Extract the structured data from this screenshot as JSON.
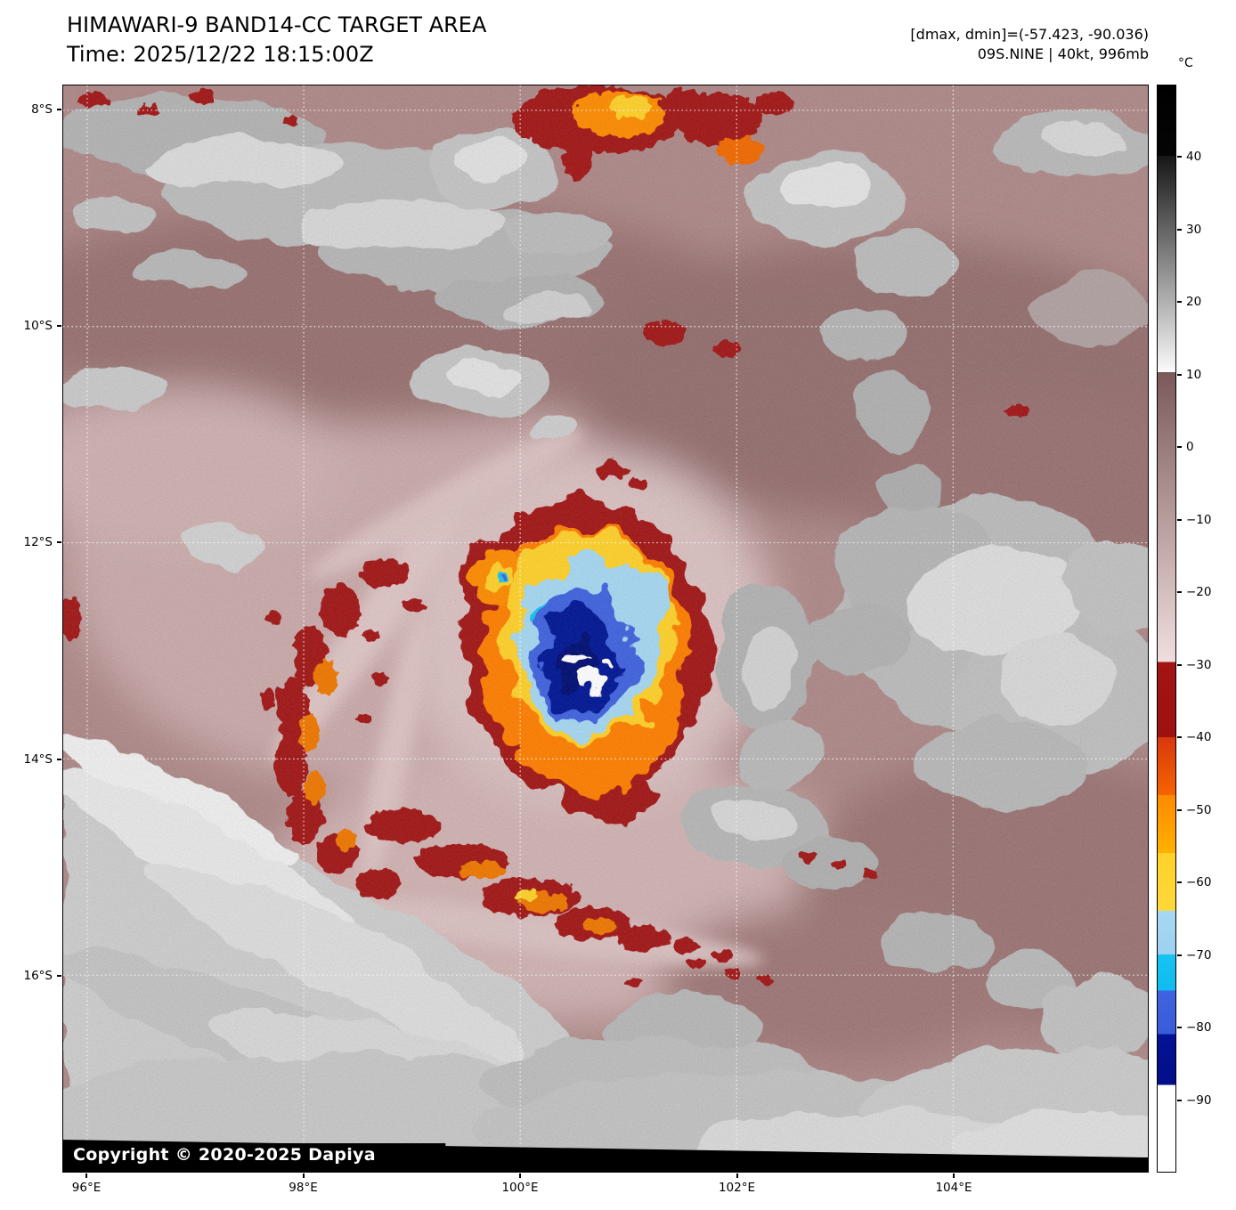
{
  "header": {
    "title": "HIMAWARI-9 BAND14-CC TARGET AREA",
    "time_line": "Time: 2025/12/22 18:15:00Z",
    "dmax_dmin": "[dmax, dmin]=(-57.423, -90.036)",
    "storm_info": "09S.NINE | 40kt, 996mb"
  },
  "map": {
    "copyright": "Copyright © 2020-2025 Dapiya"
  },
  "axes": {
    "lat_ticks": [
      {
        "label": "8°S",
        "deg": 8
      },
      {
        "label": "10°S",
        "deg": 10
      },
      {
        "label": "12°S",
        "deg": 12
      },
      {
        "label": "14°S",
        "deg": 14
      },
      {
        "label": "16°S",
        "deg": 16
      }
    ],
    "lon_ticks": [
      {
        "label": "96°E",
        "deg": 96
      },
      {
        "label": "98°E",
        "deg": 98
      },
      {
        "label": "100°E",
        "deg": 100
      },
      {
        "label": "102°E",
        "deg": 102
      },
      {
        "label": "104°E",
        "deg": 104
      }
    ]
  },
  "colorbar": {
    "unit": "°C",
    "range_top_c": 50,
    "range_bottom_c": -100,
    "ticks": [
      {
        "label": "40",
        "value": 40
      },
      {
        "label": "30",
        "value": 30
      },
      {
        "label": "20",
        "value": 20
      },
      {
        "label": "10",
        "value": 10
      },
      {
        "label": "0",
        "value": 0
      },
      {
        "label": "−10",
        "value": -10
      },
      {
        "label": "−20",
        "value": -20
      },
      {
        "label": "−30",
        "value": -30
      },
      {
        "label": "−40",
        "value": -40
      },
      {
        "label": "−50",
        "value": -50
      },
      {
        "label": "−60",
        "value": -60
      },
      {
        "label": "−70",
        "value": -70
      },
      {
        "label": "−80",
        "value": -80
      },
      {
        "label": "−90",
        "value": -90
      }
    ],
    "stops": [
      {
        "t": 50,
        "c": "#000000"
      },
      {
        "t": 40.3,
        "c": "#050505"
      },
      {
        "t": 40.3,
        "c": "#161616"
      },
      {
        "t": 10.4,
        "c": "#fbfbfb"
      },
      {
        "t": 10.4,
        "c": "#7c5959"
      },
      {
        "t": -29.6,
        "c": "#f0dede"
      },
      {
        "t": -29.6,
        "c": "#a31414"
      },
      {
        "t": -40,
        "c": "#9e1111"
      },
      {
        "t": -40,
        "c": "#d8380e"
      },
      {
        "t": -48,
        "c": "#f56400"
      },
      {
        "t": -48,
        "c": "#fe8a00"
      },
      {
        "t": -56,
        "c": "#ffb100"
      },
      {
        "t": -56,
        "c": "#ffd22a"
      },
      {
        "t": -64,
        "c": "#ffd83a"
      },
      {
        "t": -64,
        "c": "#a6d8f2"
      },
      {
        "t": -70,
        "c": "#9cd2f0"
      },
      {
        "t": -70,
        "c": "#17c3f2"
      },
      {
        "t": -75,
        "c": "#10bcf0"
      },
      {
        "t": -75,
        "c": "#3f63e0"
      },
      {
        "t": -81,
        "c": "#3a5cda"
      },
      {
        "t": -81,
        "c": "#041295"
      },
      {
        "t": -88,
        "c": "#030f88"
      },
      {
        "t": -88,
        "c": "#ffffff"
      },
      {
        "t": -100,
        "c": "#ffffff"
      }
    ]
  }
}
